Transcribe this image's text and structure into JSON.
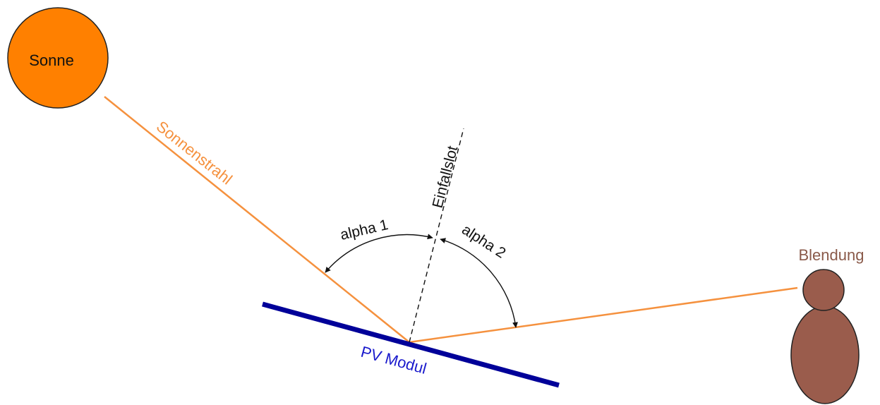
{
  "labels": {
    "sun": "Sonne",
    "ray": "Sonnenstrahl",
    "normal": "Einfallslot",
    "alpha1": "alpha 1",
    "alpha2": "alpha 2",
    "module": "PV Modul",
    "glare": "Blendung"
  },
  "colors": {
    "sun_fill": "#ff8000",
    "ray": "#f5913e",
    "module": "#000099",
    "module_label": "#1a1acc",
    "person": "#9a5c4c",
    "glare_label": "#8a5a4a",
    "ink": "#111111"
  }
}
